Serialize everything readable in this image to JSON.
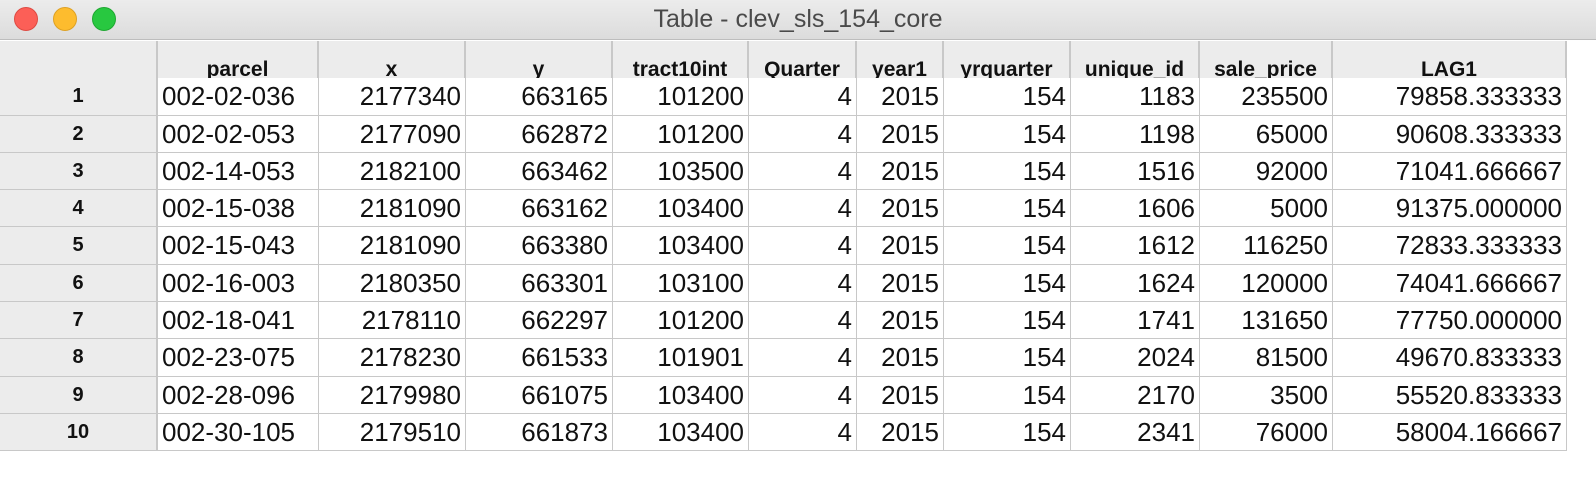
{
  "window": {
    "title": "Table - clev_sls_154_core"
  },
  "table": {
    "columns": [
      "parcel",
      "x",
      "y",
      "tract10int",
      "Quarter",
      "year1",
      "yrquarter",
      "unique_id",
      "sale_price",
      "LAG1"
    ],
    "rows": [
      {
        "num": "1",
        "cells": [
          "002-02-036",
          "2177340",
          "663165",
          "101200",
          "4",
          "2015",
          "154",
          "1183",
          "235500",
          "79858.333333"
        ]
      },
      {
        "num": "2",
        "cells": [
          "002-02-053",
          "2177090",
          "662872",
          "101200",
          "4",
          "2015",
          "154",
          "1198",
          "65000",
          "90608.333333"
        ]
      },
      {
        "num": "3",
        "cells": [
          "002-14-053",
          "2182100",
          "663462",
          "103500",
          "4",
          "2015",
          "154",
          "1516",
          "92000",
          "71041.666667"
        ]
      },
      {
        "num": "4",
        "cells": [
          "002-15-038",
          "2181090",
          "663162",
          "103400",
          "4",
          "2015",
          "154",
          "1606",
          "5000",
          "91375.000000"
        ]
      },
      {
        "num": "5",
        "cells": [
          "002-15-043",
          "2181090",
          "663380",
          "103400",
          "4",
          "2015",
          "154",
          "1612",
          "116250",
          "72833.333333"
        ]
      },
      {
        "num": "6",
        "cells": [
          "002-16-003",
          "2180350",
          "663301",
          "103100",
          "4",
          "2015",
          "154",
          "1624",
          "120000",
          "74041.666667"
        ]
      },
      {
        "num": "7",
        "cells": [
          "002-18-041",
          "2178110",
          "662297",
          "101200",
          "4",
          "2015",
          "154",
          "1741",
          "131650",
          "77750.000000"
        ]
      },
      {
        "num": "8",
        "cells": [
          "002-23-075",
          "2178230",
          "661533",
          "101901",
          "4",
          "2015",
          "154",
          "2024",
          "81500",
          "49670.833333"
        ]
      },
      {
        "num": "9",
        "cells": [
          "002-28-096",
          "2179980",
          "661075",
          "103400",
          "4",
          "2015",
          "154",
          "2170",
          "3500",
          "55520.833333"
        ]
      },
      {
        "num": "10",
        "cells": [
          "002-30-105",
          "2179510",
          "661873",
          "103400",
          "4",
          "2015",
          "154",
          "2341",
          "76000",
          "58004.166667"
        ]
      }
    ]
  }
}
